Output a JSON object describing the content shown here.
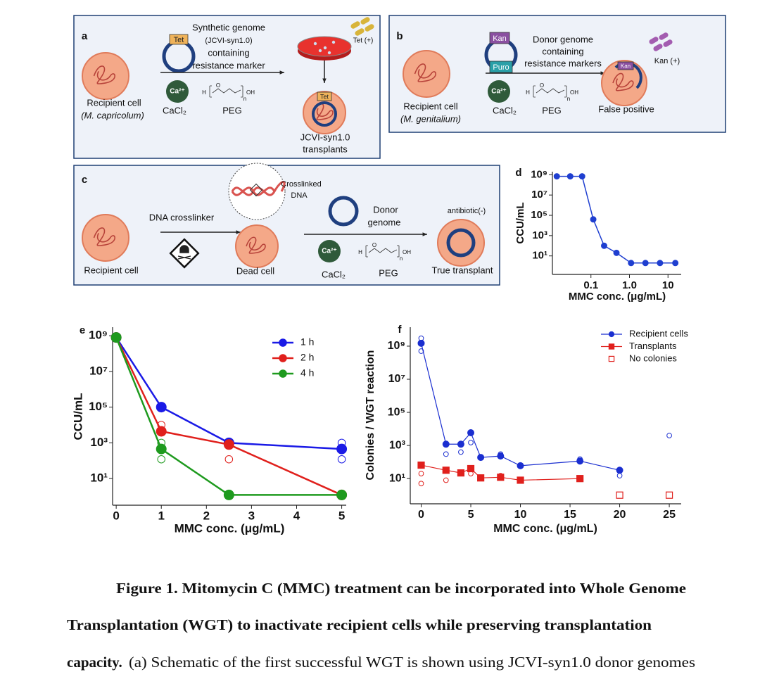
{
  "panels": {
    "a": {
      "label": "a",
      "tet_tag": "Tet",
      "donor_lines": [
        "Synthetic genome",
        "(JCVI-syn1.0)",
        "containing",
        "resistance marker"
      ],
      "selection": "Tet (+)",
      "recipient": [
        "Recipient cell",
        "(M. capricolum)"
      ],
      "calcium": "Ca²⁺",
      "cacl2": "CaCl₂",
      "peg": "PEG",
      "result": [
        "JCVI-syn1.0",
        "transplants"
      ]
    },
    "b": {
      "label": "b",
      "kan_tag": "Kan",
      "puro_tag": "Puro",
      "donor_lines": [
        "Donor genome",
        "containing",
        "resistance markers"
      ],
      "selection": "Kan (+)",
      "recipient": [
        "Recipient cell",
        "(M. genitalium)"
      ],
      "calcium": "Ca²⁺",
      "cacl2": "CaCl₂",
      "peg": "PEG",
      "result": "False positive"
    },
    "c": {
      "label": "c",
      "crosslinker": "DNA crosslinker",
      "crosslinked": [
        "Crosslinked",
        "DNA"
      ],
      "recipient": "Recipient cell",
      "dead": "Dead cell",
      "donor": [
        "Donor",
        "genome"
      ],
      "selection": "antibiotic(-)",
      "calcium": "Ca²⁺",
      "cacl2": "CaCl₂",
      "peg": "PEG",
      "result": "True transplant"
    }
  },
  "peg_formula": {
    "h": "H",
    "o": "O",
    "oh": "OH",
    "n": "n"
  },
  "chart_data": [
    {
      "type": "line",
      "panel": "d",
      "ylabel": "CCU/mL",
      "xlabel": "MMC conc. (μg/mL)",
      "xscale": "log",
      "yscale": "log",
      "xlim": [
        0.01,
        22
      ],
      "ylim": [
        0.15,
        2000000000
      ],
      "xticks": [
        0.1,
        {
          "value": 1,
          "label": "1.0"
        },
        10
      ],
      "yticks": [
        {
          "value": 10,
          "label": "10¹"
        },
        {
          "value": 1000,
          "label": "10³"
        },
        {
          "value": 100000,
          "label": "10⁵"
        },
        {
          "value": 10000000,
          "label": "10⁷"
        },
        {
          "value": 1000000000,
          "label": "10⁹"
        }
      ],
      "x": [
        0.013,
        0.029,
        0.059,
        0.115,
        0.22,
        0.46,
        1.1,
        2.6,
        6.2,
        15.5
      ],
      "series": [
        {
          "color": "#1f3fd0",
          "marker": "circle",
          "values": [
            700000000,
            700000000,
            700000000,
            40000,
            100,
            20,
            2,
            2,
            2,
            2
          ]
        }
      ]
    },
    {
      "type": "line",
      "panel": "e",
      "ylabel": "CCU/mL",
      "xlabel": "MMC conc. (μg/mL)",
      "yscale": "log",
      "xlim": [
        -0.08,
        5.1
      ],
      "ylim": [
        0.32,
        3000000000
      ],
      "xticks": [
        0,
        1,
        2,
        3,
        4,
        5
      ],
      "yticks": [
        {
          "value": 10,
          "label": "10¹"
        },
        {
          "value": 1000,
          "label": "10³"
        },
        {
          "value": 100000,
          "label": "10⁵"
        },
        {
          "value": 10000000,
          "label": "10⁷"
        },
        {
          "value": 1000000000,
          "label": "10⁹"
        }
      ],
      "x": [
        0,
        1,
        2.5,
        5
      ],
      "series": [
        {
          "name": "1 h",
          "color": "#1a1ae6",
          "marker": "circle",
          "values": [
            800000000,
            100000,
            1000,
            450
          ]
        },
        {
          "name": "2 h",
          "color": "#e0201c",
          "marker": "circle",
          "values": [
            800000000,
            4400,
            800,
            1.2
          ]
        },
        {
          "name": "4 h",
          "color": "#1e9a1e",
          "marker": "circle",
          "values": [
            800000000,
            450,
            1.2,
            1.2
          ]
        }
      ],
      "replicates": {
        "x": [
          1,
          1,
          1,
          2.5,
          5,
          5
        ],
        "values": [
          10000,
          1000,
          120,
          120,
          1000,
          120
        ],
        "colors": [
          "#e0201c",
          "#1e9a1e",
          "#1e9a1e",
          "#e0201c",
          "#1a1ae6",
          "#1a1ae6"
        ]
      }
    },
    {
      "type": "line",
      "panel": "f",
      "ylabel": "Colonies / WGT reaction",
      "xlabel": "MMC conc. (μg/mL)",
      "yscale": "log",
      "xlim": [
        -1.1,
        26.2
      ],
      "ylim": [
        0.3,
        14000000000
      ],
      "xticks": [
        0,
        5,
        10,
        15,
        20,
        25
      ],
      "yticks": [
        {
          "value": 10,
          "label": "10¹"
        },
        {
          "value": 1000,
          "label": "10³"
        },
        {
          "value": 100000,
          "label": "10⁵"
        },
        {
          "value": 10000000,
          "label": "10⁷"
        },
        {
          "value": 1000000000,
          "label": "10⁹"
        }
      ],
      "series": [
        {
          "name": "Recipient cells",
          "color": "#1a2ed0",
          "marker": "circle",
          "x": [
            0,
            2.5,
            4,
            5,
            6,
            8,
            10,
            16,
            20
          ],
          "values": [
            1500000000,
            1200,
            1200,
            5900,
            190,
            230,
            60,
            115,
            32
          ]
        },
        {
          "name": "Transplants",
          "color": "#e0201c",
          "marker": "square",
          "x": [
            0,
            2.5,
            4,
            5,
            6,
            8,
            10,
            16
          ],
          "values": [
            65,
            32,
            22,
            40,
            11,
            12,
            8,
            10
          ]
        },
        {
          "name": "No colonies",
          "color": "#e0201c",
          "marker": "open-square",
          "line": false,
          "x": [
            20,
            25
          ],
          "values": [
            1,
            1
          ]
        }
      ],
      "replicates": {
        "x": [
          0,
          0,
          2.5,
          4,
          5,
          8,
          16,
          20,
          25,
          0,
          0,
          2.5,
          5,
          8
        ],
        "values": [
          3000000000,
          500000000,
          300,
          400,
          1500,
          300,
          150,
          15,
          4000,
          20,
          5,
          8,
          20,
          15
        ],
        "colors": [
          "#1a2ed0",
          "#1a2ed0",
          "#1a2ed0",
          "#1a2ed0",
          "#1a2ed0",
          "#1a2ed0",
          "#1a2ed0",
          "#1a2ed0",
          "#1a2ed0",
          "#e0201c",
          "#e0201c",
          "#e0201c",
          "#e0201c",
          "#e0201c"
        ]
      }
    }
  ],
  "caption": {
    "title_lines": [
      "Figure 1. Mitomycin C (MMC) treatment can be incorporated into Whole Genome",
      "Transplantation (WGT) to inactivate recipient cells while preserving transplantation",
      "capacity."
    ],
    "body": "(a) Schematic of the first successful WGT is shown using JCVI-syn1.0 donor genomes"
  }
}
